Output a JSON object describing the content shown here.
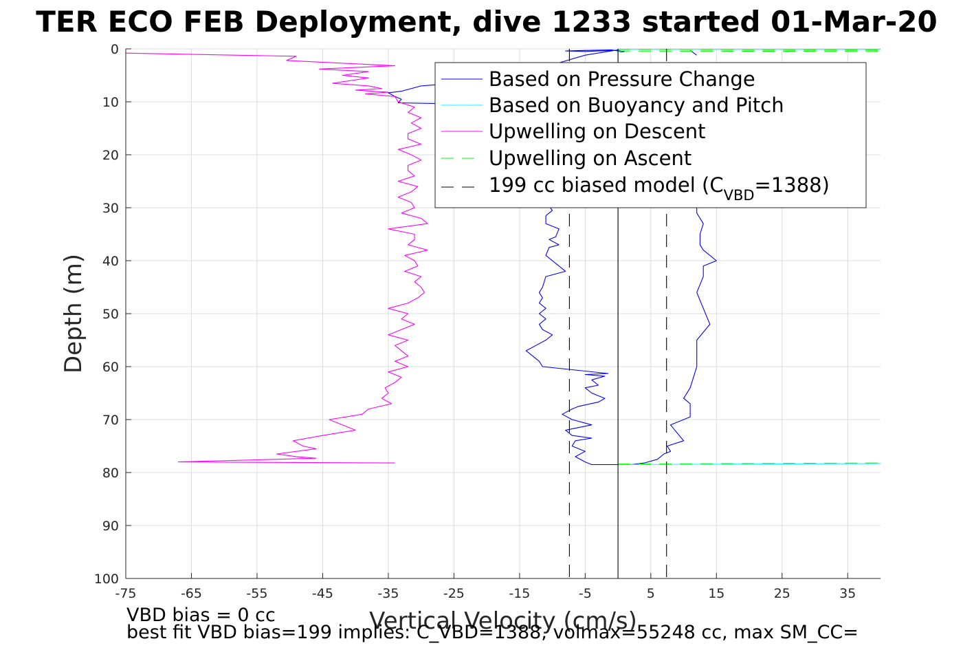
{
  "chart_data": {
    "type": "line",
    "title": "TER ECO FEB Deployment, dive 1233 started 01-Mar-20",
    "xlabel": "Vertical Velocity (cm/s)",
    "ylabel": "Depth (m)",
    "xlim": [
      -75,
      40
    ],
    "ylim": [
      0,
      100
    ],
    "y_reversed": true,
    "grid": true,
    "x_ticks": [
      "-75",
      "-65",
      "-55",
      "-45",
      "-35",
      "-25",
      "-15",
      "-5",
      "5",
      "15",
      "25",
      "35"
    ],
    "x_tick_values": [
      -75,
      -65,
      -55,
      -45,
      -35,
      -25,
      -15,
      -5,
      5,
      15,
      25,
      35
    ],
    "y_ticks": [
      "0",
      "10",
      "20",
      "30",
      "40",
      "50",
      "60",
      "70",
      "80",
      "90",
      "100"
    ],
    "y_tick_values": [
      0,
      10,
      20,
      30,
      40,
      50,
      60,
      70,
      80,
      90,
      100
    ],
    "legend_position": "top-right",
    "legend": [
      {
        "label": "Based on Pressure Change",
        "color": "#0000ff",
        "dash": false
      },
      {
        "label": "Based on Buoyancy and Pitch",
        "color": "#00ffff",
        "dash": false
      },
      {
        "label": "Upwelling on Descent",
        "color": "#ff00ff",
        "dash": false
      },
      {
        "label": "Upwelling on Ascent",
        "color": "#00ff00",
        "dash": true
      },
      {
        "label_main": "199 cc biased model (C",
        "label_sub": "VBD",
        "label_end": "=1388)",
        "color": "#000000",
        "dash": true
      }
    ],
    "series": [
      {
        "name": "Based on Pressure Change",
        "color": "#0000ff",
        "segments": [
          {
            "points": [
              [
                0,
                0.3
              ],
              [
                -3,
                0.4
              ],
              [
                -5,
                0.5
              ],
              [
                -8,
                0.4
              ],
              [
                -5,
                0.3
              ],
              [
                -1,
                0.2
              ],
              [
                0,
                0.4
              ],
              [
                0.5,
                0.6
              ],
              [
                1,
                0.5
              ],
              [
                0,
                0.3
              ]
            ]
          },
          {
            "points": [
              [
                0,
                0.2
              ],
              [
                -5,
                1.2
              ],
              [
                -10,
                3
              ],
              [
                -13,
                5.5
              ],
              [
                -20,
                6
              ],
              [
                -30,
                7
              ],
              [
                -33,
                8
              ],
              [
                -35,
                8.3
              ],
              [
                -34,
                9
              ],
              [
                -33,
                9.5
              ],
              [
                -33.5,
                10.2
              ],
              [
                -20,
                10.5
              ],
              [
                -14,
                10.8
              ],
              [
                -12,
                11.5
              ]
            ]
          },
          {
            "points": [
              [
                -11,
                29
              ],
              [
                -10,
                30.5
              ],
              [
                -11,
                31.5
              ],
              [
                -11,
                33
              ],
              [
                -9,
                34
              ],
              [
                -9.5,
                35.5
              ],
              [
                -10.5,
                36
              ],
              [
                -9,
                37
              ],
              [
                -10.5,
                37.5
              ],
              [
                -11,
                39
              ],
              [
                -9,
                41
              ],
              [
                -8,
                42
              ],
              [
                -11,
                43
              ],
              [
                -11.5,
                45
              ],
              [
                -12,
                46
              ],
              [
                -11.5,
                47
              ],
              [
                -12,
                48
              ],
              [
                -11,
                49
              ],
              [
                -12,
                50
              ],
              [
                -11,
                51
              ],
              [
                -12,
                52
              ],
              [
                -11.5,
                53
              ],
              [
                -10,
                54
              ],
              [
                -11,
                55
              ],
              [
                -12.5,
                56
              ],
              [
                -14,
                57
              ],
              [
                -13,
                58
              ],
              [
                -12,
                59
              ],
              [
                -11.5,
                60
              ],
              [
                -1.5,
                61.3
              ],
              [
                -5,
                61.5
              ],
              [
                -2,
                61.8
              ],
              [
                -4,
                62.5
              ],
              [
                -3,
                63.5
              ],
              [
                -5,
                64
              ],
              [
                -4,
                65
              ],
              [
                -2,
                66
              ],
              [
                -3,
                66.7
              ],
              [
                -6,
                67.5
              ],
              [
                -7,
                68
              ],
              [
                -8.5,
                69
              ],
              [
                -7,
                70
              ],
              [
                -4,
                71
              ],
              [
                -8,
                72
              ],
              [
                -7,
                73
              ],
              [
                -4,
                73.5
              ],
              [
                -6.5,
                74
              ],
              [
                -7,
                75
              ],
              [
                -5,
                76
              ],
              [
                -6.5,
                77
              ],
              [
                -5,
                78
              ],
              [
                -4,
                78.5
              ],
              [
                0,
                78.5
              ],
              [
                2,
                78.5
              ],
              [
                4,
                78.2
              ],
              [
                6,
                77.5
              ],
              [
                7,
                76.5
              ],
              [
                8,
                76
              ],
              [
                7.5,
                75
              ],
              [
                10,
                74
              ],
              [
                9,
                72.5
              ],
              [
                8,
                71
              ],
              [
                11,
                69.5
              ],
              [
                11,
                67
              ],
              [
                10,
                66
              ],
              [
                11,
                64
              ],
              [
                11.5,
                62
              ],
              [
                12,
                60
              ],
              [
                12,
                57
              ],
              [
                12,
                55
              ],
              [
                14,
                52
              ],
              [
                13,
                49
              ],
              [
                12,
                46
              ],
              [
                13,
                43
              ],
              [
                13,
                41
              ],
              [
                15,
                40
              ],
              [
                13,
                38
              ],
              [
                12.5,
                37
              ],
              [
                12.5,
                35
              ],
              [
                13,
                33
              ],
              [
                12,
                31
              ],
              [
                12,
                29
              ]
            ]
          },
          {
            "points": [
              [
                11,
                0.3
              ],
              [
                12,
                1.2
              ]
            ]
          }
        ]
      },
      {
        "name": "Based on Buoyancy and Pitch",
        "color": "#00ffff",
        "segments": [
          {
            "points": [
              [
                0,
                0.1
              ],
              [
                40,
                0.1
              ]
            ]
          },
          {
            "points": [
              [
                0,
                78.5
              ],
              [
                40,
                78.3
              ]
            ]
          },
          {
            "points": [
              [
                0,
                0.5
              ],
              [
                0,
                78.5
              ]
            ]
          }
        ]
      },
      {
        "name": "Upwelling on Descent",
        "color": "#ff00ff",
        "segments": [
          {
            "points": [
              [
                -75,
                0.8
              ],
              [
                -49,
                1.4
              ],
              [
                -50.5,
                2.2
              ],
              [
                -34,
                3.2
              ],
              [
                -45.5,
                3.8
              ],
              [
                -38,
                4.3
              ],
              [
                -42,
                5
              ],
              [
                -38,
                5.5
              ],
              [
                -43.5,
                6.5
              ],
              [
                -38,
                7
              ],
              [
                -36,
                7.5
              ],
              [
                -40,
                7.8
              ],
              [
                -35,
                8.2
              ],
              [
                -38.5,
                8.5
              ],
              [
                -34,
                9
              ],
              [
                -33.5,
                10
              ],
              [
                -31,
                11
              ],
              [
                -32,
                12
              ],
              [
                -30,
                13
              ],
              [
                -31.5,
                14
              ],
              [
                -30,
                15
              ],
              [
                -32,
                16
              ],
              [
                -32,
                17
              ],
              [
                -30,
                18
              ],
              [
                -33.5,
                19
              ],
              [
                -31.5,
                20
              ],
              [
                -30,
                21
              ],
              [
                -32,
                22
              ],
              [
                -32,
                23
              ],
              [
                -31,
                24
              ],
              [
                -33.5,
                25
              ],
              [
                -30.5,
                26
              ],
              [
                -31.5,
                27
              ],
              [
                -33.5,
                28
              ],
              [
                -31.5,
                29
              ],
              [
                -31,
                30
              ],
              [
                -33,
                31
              ],
              [
                -30,
                32
              ],
              [
                -29,
                33
              ],
              [
                -35,
                34
              ],
              [
                -31,
                35
              ],
              [
                -31,
                36
              ],
              [
                -32,
                37
              ],
              [
                -29,
                38
              ],
              [
                -32.5,
                39
              ],
              [
                -31,
                40
              ],
              [
                -30.5,
                41
              ],
              [
                -32.5,
                42
              ],
              [
                -30,
                43
              ],
              [
                -31,
                44
              ],
              [
                -30,
                45
              ],
              [
                -29.5,
                46
              ],
              [
                -30.5,
                47
              ],
              [
                -32,
                48
              ],
              [
                -35,
                49
              ],
              [
                -32,
                50
              ],
              [
                -33,
                51
              ],
              [
                -31,
                52
              ],
              [
                -33,
                53
              ],
              [
                -35,
                54
              ],
              [
                -32,
                55
              ],
              [
                -34,
                56
              ],
              [
                -33,
                57
              ],
              [
                -32,
                58
              ],
              [
                -34,
                59
              ],
              [
                -32,
                60
              ],
              [
                -35,
                61
              ],
              [
                -33,
                62
              ],
              [
                -34,
                63
              ],
              [
                -35.5,
                64
              ],
              [
                -35,
                65
              ],
              [
                -36,
                66
              ],
              [
                -34.5,
                67
              ],
              [
                -38,
                68
              ],
              [
                -39,
                69
              ],
              [
                -44,
                70
              ],
              [
                -42,
                71
              ],
              [
                -40,
                72
              ],
              [
                -45,
                73
              ],
              [
                -49.5,
                74
              ],
              [
                -48,
                75
              ],
              [
                -46,
                75.5
              ],
              [
                -52,
                76.5
              ],
              [
                -49,
                77
              ],
              [
                -46,
                77.3
              ],
              [
                -67,
                78
              ],
              [
                -34,
                78.2
              ]
            ]
          }
        ]
      },
      {
        "name": "Upwelling on Ascent",
        "color": "#00ff00",
        "dash": true,
        "segments": [
          {
            "points": [
              [
                0,
                0.1
              ],
              [
                40,
                0.2
              ]
            ]
          },
          {
            "points": [
              [
                0,
                0.4
              ],
              [
                40,
                0.5
              ]
            ]
          },
          {
            "points": [
              [
                0,
                78.4
              ],
              [
                40,
                78.2
              ]
            ]
          }
        ]
      },
      {
        "name": "199 cc biased model (C_VBD=1388)",
        "color": "#000000",
        "dash": true,
        "segments": [
          {
            "points": [
              [
                -7.4,
                0
              ],
              [
                -7.4,
                100
              ]
            ]
          },
          {
            "points": [
              [
                7.4,
                0
              ],
              [
                7.4,
                100
              ]
            ]
          }
        ]
      },
      {
        "name": "zero line",
        "color": "#000000",
        "dash": false,
        "segments": [
          {
            "points": [
              [
                0,
                0
              ],
              [
                0,
                100
              ]
            ]
          }
        ]
      }
    ],
    "annotations": [
      "VBD bias = 0 cc",
      "best fit VBD bias=199 implies: C_VBD=1388, volmax=55248 cc, max SM_CC="
    ]
  }
}
